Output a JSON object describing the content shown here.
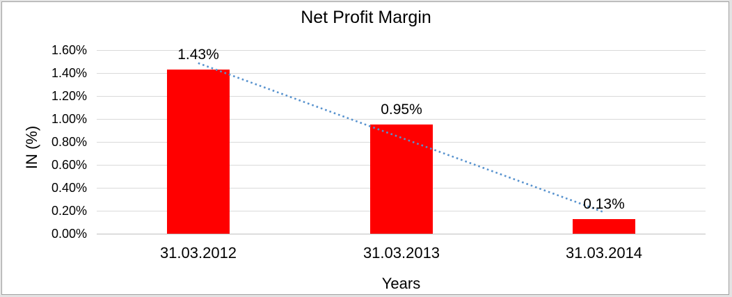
{
  "frame": {
    "outer_background": "#e3e3e3",
    "border_color": "#a0a0a0",
    "chart_background": "#ffffff"
  },
  "chart_data": {
    "type": "bar",
    "title": "Net Profit Margin",
    "xlabel": "Years",
    "ylabel": "IN (%)",
    "categories": [
      "31.03.2012",
      "31.03.2013",
      "31.03.2014"
    ],
    "values": [
      1.43,
      0.95,
      0.13
    ],
    "data_labels": [
      "1.43%",
      "0.95%",
      "0.13%"
    ],
    "ylim": [
      0,
      1.6
    ],
    "ytick_labels": [
      "0.00%",
      "0.20%",
      "0.40%",
      "0.60%",
      "0.80%",
      "1.00%",
      "1.20%",
      "1.40%",
      "1.60%"
    ],
    "grid": true,
    "legend": "none",
    "bar_color": "#ff0000",
    "gridline_color": "#d9d9d9",
    "axis_line_color": "#bfbfbf",
    "text_color": "#000000",
    "trendline": {
      "type": "linear",
      "style": "dotted",
      "color": "#5792ce"
    }
  }
}
